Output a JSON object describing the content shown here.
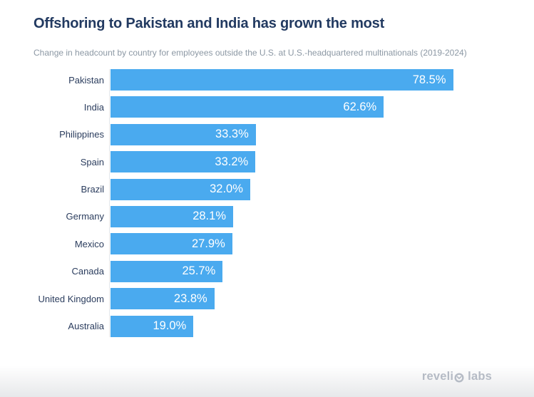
{
  "header": {
    "title": "Offshoring to Pakistan and India has grown the most",
    "subtitle": "Change in headcount by country for employees outside the U.S. at U.S.-headquartered multinationals (2019-2024)"
  },
  "chart_data": {
    "type": "bar",
    "orientation": "horizontal",
    "title": "Offshoring to Pakistan and India has grown the most",
    "subtitle": "Change in headcount by country for employees outside the U.S. at U.S.-headquartered multinationals (2019-2024)",
    "categories": [
      "Pakistan",
      "India",
      "Philippines",
      "Spain",
      "Brazil",
      "Germany",
      "Mexico",
      "Canada",
      "United Kingdom",
      "Australia"
    ],
    "values": [
      78.5,
      62.6,
      33.3,
      33.2,
      32.0,
      28.1,
      27.9,
      25.7,
      23.8,
      19.0
    ],
    "value_labels": [
      "78.5%",
      "62.6%",
      "33.3%",
      "33.2%",
      "32.0%",
      "28.1%",
      "27.9%",
      "25.7%",
      "23.8%",
      "19.0%"
    ],
    "value_suffix": "%",
    "xlim": [
      0,
      97
    ],
    "grid": false,
    "legend": "none",
    "value_label_position": "inside-end",
    "bar_color": "#4aaaef",
    "value_label_color": "#ffffff"
  },
  "footer": {
    "logo_prefix": "reveli",
    "logo_suffix": "labs"
  },
  "colors": {
    "background": "#ffffff",
    "title": "#223a61",
    "subtitle": "#8c98a4",
    "category_label": "#2b3d5e",
    "bar": "#4aaaef",
    "axis_line": "#e4e8ec",
    "logo": "#b5bbc5"
  }
}
